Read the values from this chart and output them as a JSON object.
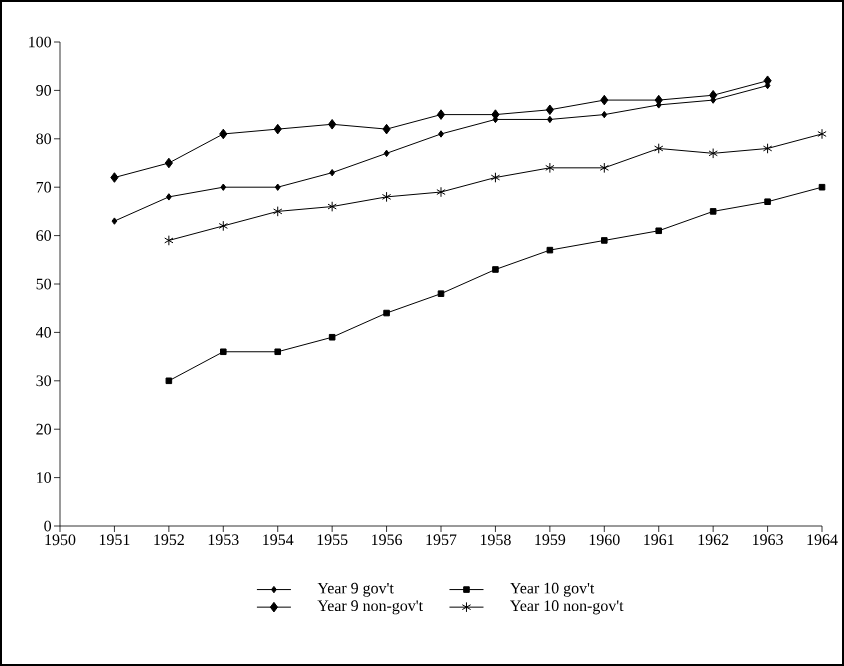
{
  "chart_data": {
    "type": "line",
    "xlim": [
      1950,
      1964
    ],
    "ylim": [
      0,
      100
    ],
    "xticks": [
      1950,
      1951,
      1952,
      1953,
      1954,
      1955,
      1956,
      1957,
      1958,
      1959,
      1960,
      1961,
      1962,
      1963,
      1964
    ],
    "yticks": [
      0,
      10,
      20,
      30,
      40,
      50,
      60,
      70,
      80,
      90,
      100
    ],
    "legend": "bottom",
    "line_style": "solid",
    "series": [
      {
        "name": "Year 9 gov't",
        "color": "#000000",
        "marker": "diamond",
        "x": [
          1951,
          1952,
          1953,
          1954,
          1955,
          1956,
          1957,
          1958,
          1959,
          1960,
          1961,
          1962,
          1963
        ],
        "values": [
          63,
          68,
          70,
          70,
          73,
          77,
          81,
          84,
          84,
          85,
          87,
          88,
          91
        ]
      },
      {
        "name": "Year 10 gov't",
        "color": "#000000",
        "marker": "square",
        "x": [
          1952,
          1953,
          1954,
          1955,
          1956,
          1957,
          1958,
          1959,
          1960,
          1961,
          1962,
          1963,
          1964
        ],
        "values": [
          30,
          36,
          36,
          39,
          44,
          48,
          53,
          57,
          59,
          61,
          65,
          67,
          70
        ]
      },
      {
        "name": "Year 9 non-gov't",
        "color": "#000000",
        "marker": "diamond",
        "x": [
          1951,
          1952,
          1953,
          1954,
          1955,
          1956,
          1957,
          1958,
          1959,
          1960,
          1961,
          1962,
          1963
        ],
        "values": [
          72,
          75,
          81,
          82,
          83,
          82,
          85,
          85,
          86,
          88,
          88,
          89,
          92
        ]
      },
      {
        "name": "Year 10 non-gov't",
        "color": "#000000",
        "marker": "cross",
        "x": [
          1952,
          1953,
          1954,
          1955,
          1956,
          1957,
          1958,
          1959,
          1960,
          1961,
          1962,
          1963,
          1964
        ],
        "values": [
          59,
          62,
          65,
          66,
          68,
          69,
          72,
          74,
          74,
          78,
          77,
          78,
          81
        ]
      }
    ]
  }
}
